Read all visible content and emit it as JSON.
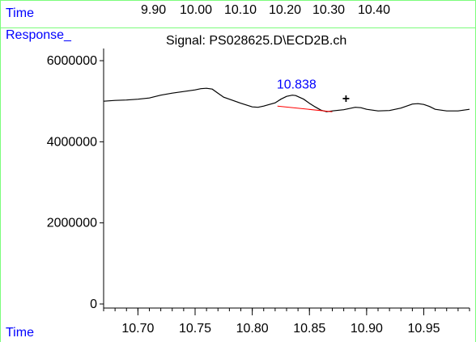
{
  "header": {
    "time_label": "Time",
    "top_ticks": [
      "9.90",
      "10.00",
      "10.10",
      "10.20",
      "10.30",
      "10.40"
    ]
  },
  "response_label": "Response_",
  "footer": {
    "time_label": "Time"
  },
  "colors": {
    "frame": "#7CFC7C",
    "label_blue": "#0000FF",
    "trace": "#000000",
    "baseline": "#FF0000"
  },
  "chart_data": {
    "type": "line",
    "title": "Signal: PS028625.D\\ECD2B.ch",
    "xlabel": "Time",
    "ylabel": "Response_",
    "xlim": [
      10.67,
      10.99
    ],
    "ylim": [
      -100000,
      6300000
    ],
    "x_ticks": [
      10.7,
      10.75,
      10.8,
      10.85,
      10.9,
      10.95
    ],
    "x_tick_labels": [
      "10.70",
      "10.75",
      "10.80",
      "10.85",
      "10.90",
      "10.95"
    ],
    "x_minor_step": 0.01,
    "y_ticks": [
      0,
      2000000,
      4000000,
      6000000
    ],
    "y_tick_labels": [
      "0",
      "2000000",
      "4000000",
      "6000000"
    ],
    "grid": false,
    "series": [
      {
        "x": [
          10.67,
          10.68,
          10.69,
          10.7,
          10.71,
          10.72,
          10.73,
          10.74,
          10.75,
          10.755,
          10.76,
          10.765,
          10.77,
          10.775,
          10.78,
          10.79,
          10.8,
          10.805,
          10.81,
          10.815,
          10.82,
          10.825,
          10.83,
          10.835,
          10.838,
          10.845,
          10.85,
          10.855,
          10.86,
          10.865,
          10.87,
          10.88,
          10.89,
          10.895,
          10.9,
          10.91,
          10.92,
          10.93,
          10.94,
          10.945,
          10.95,
          10.955,
          10.96,
          10.97,
          10.98,
          10.99
        ],
        "y": [
          5000000,
          5020000,
          5030000,
          5050000,
          5080000,
          5150000,
          5200000,
          5240000,
          5280000,
          5310000,
          5320000,
          5300000,
          5200000,
          5100000,
          5050000,
          4950000,
          4860000,
          4850000,
          4880000,
          4920000,
          4960000,
          5050000,
          5120000,
          5150000,
          5140000,
          5050000,
          4950000,
          4860000,
          4780000,
          4740000,
          4760000,
          4790000,
          4850000,
          4840000,
          4800000,
          4760000,
          4770000,
          4830000,
          4930000,
          4940000,
          4920000,
          4870000,
          4800000,
          4760000,
          4760000,
          4800000
        ]
      }
    ],
    "peak_label": "10.838",
    "peak_baseline": {
      "x": [
        10.822,
        10.87
      ],
      "y": [
        4880000,
        4740000
      ]
    },
    "marker": {
      "symbol": "+",
      "x": 10.882,
      "y": 5080000
    }
  }
}
